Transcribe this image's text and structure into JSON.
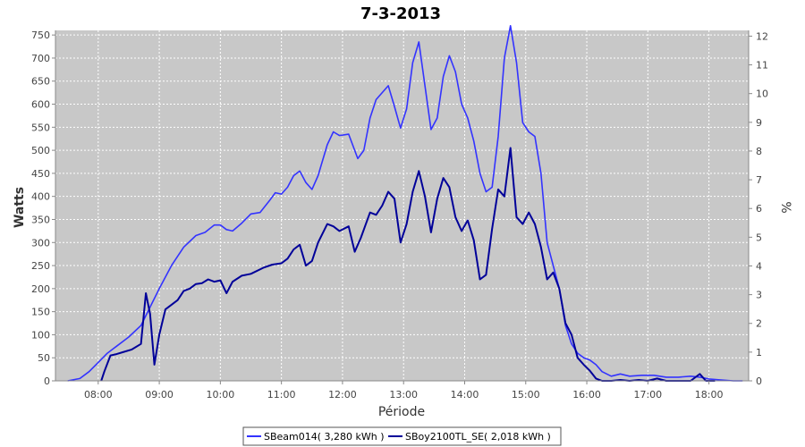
{
  "chart_data": {
    "type": "line",
    "title": "7-3-2013",
    "xlabel": "Période",
    "ylabel": "Watts",
    "y2label": "%",
    "x_tick_labels": [
      "08:00",
      "09:00",
      "10:00",
      "11:00",
      "12:00",
      "13:00",
      "14:00",
      "15:00",
      "16:00",
      "17:00",
      "18:00"
    ],
    "ylim": [
      0,
      760
    ],
    "y_ticks": [
      0,
      50,
      100,
      150,
      200,
      250,
      300,
      350,
      400,
      450,
      500,
      550,
      600,
      650,
      700,
      750
    ],
    "y2lim": [
      0,
      12.2
    ],
    "y2_ticks": [
      0,
      1,
      2,
      3,
      4,
      5,
      6,
      7,
      8,
      9,
      10,
      11,
      12
    ],
    "xlim_hours": [
      7.3,
      18.65
    ],
    "grid": true,
    "legend_position": "bottom",
    "series": [
      {
        "name": "SBeam014( 3,280 kWh )",
        "color": "#3333ff",
        "points": [
          [
            7.5,
            0
          ],
          [
            7.7,
            5
          ],
          [
            7.85,
            20
          ],
          [
            8.0,
            40
          ],
          [
            8.15,
            60
          ],
          [
            8.3,
            75
          ],
          [
            8.5,
            95
          ],
          [
            8.7,
            120
          ],
          [
            8.85,
            160
          ],
          [
            9.0,
            200
          ],
          [
            9.2,
            250
          ],
          [
            9.4,
            290
          ],
          [
            9.6,
            315
          ],
          [
            9.75,
            322
          ],
          [
            9.9,
            338
          ],
          [
            10.0,
            338
          ],
          [
            10.1,
            328
          ],
          [
            10.2,
            325
          ],
          [
            10.35,
            342
          ],
          [
            10.5,
            362
          ],
          [
            10.65,
            365
          ],
          [
            10.8,
            390
          ],
          [
            10.9,
            408
          ],
          [
            11.0,
            405
          ],
          [
            11.1,
            420
          ],
          [
            11.2,
            445
          ],
          [
            11.3,
            455
          ],
          [
            11.4,
            430
          ],
          [
            11.5,
            415
          ],
          [
            11.6,
            445
          ],
          [
            11.75,
            512
          ],
          [
            11.85,
            540
          ],
          [
            11.95,
            532
          ],
          [
            12.1,
            535
          ],
          [
            12.25,
            482
          ],
          [
            12.35,
            500
          ],
          [
            12.45,
            570
          ],
          [
            12.55,
            610
          ],
          [
            12.65,
            625
          ],
          [
            12.75,
            640
          ],
          [
            12.85,
            595
          ],
          [
            12.95,
            548
          ],
          [
            13.05,
            590
          ],
          [
            13.15,
            690
          ],
          [
            13.25,
            735
          ],
          [
            13.35,
            640
          ],
          [
            13.45,
            545
          ],
          [
            13.55,
            570
          ],
          [
            13.65,
            660
          ],
          [
            13.75,
            705
          ],
          [
            13.85,
            670
          ],
          [
            13.95,
            600
          ],
          [
            14.05,
            570
          ],
          [
            14.15,
            520
          ],
          [
            14.25,
            450
          ],
          [
            14.35,
            410
          ],
          [
            14.45,
            420
          ],
          [
            14.55,
            530
          ],
          [
            14.65,
            700
          ],
          [
            14.75,
            770
          ],
          [
            14.85,
            690
          ],
          [
            14.95,
            560
          ],
          [
            15.05,
            540
          ],
          [
            15.15,
            530
          ],
          [
            15.25,
            450
          ],
          [
            15.35,
            300
          ],
          [
            15.45,
            250
          ],
          [
            15.55,
            200
          ],
          [
            15.65,
            120
          ],
          [
            15.75,
            80
          ],
          [
            15.85,
            60
          ],
          [
            15.95,
            50
          ],
          [
            16.05,
            45
          ],
          [
            16.15,
            35
          ],
          [
            16.25,
            20
          ],
          [
            16.4,
            10
          ],
          [
            16.55,
            15
          ],
          [
            16.7,
            10
          ],
          [
            16.9,
            12
          ],
          [
            17.1,
            12
          ],
          [
            17.3,
            8
          ],
          [
            17.5,
            8
          ],
          [
            17.7,
            10
          ],
          [
            17.85,
            8
          ],
          [
            18.0,
            4
          ],
          [
            18.2,
            2
          ],
          [
            18.4,
            0
          ],
          [
            18.55,
            0
          ]
        ]
      },
      {
        "name": "SBoy2100TL_SE( 2,018 kWh )",
        "color": "#000099",
        "points": [
          [
            8.05,
            0
          ],
          [
            8.1,
            20
          ],
          [
            8.2,
            55
          ],
          [
            8.3,
            58
          ],
          [
            8.4,
            62
          ],
          [
            8.55,
            68
          ],
          [
            8.7,
            80
          ],
          [
            8.78,
            190
          ],
          [
            8.85,
            145
          ],
          [
            8.92,
            35
          ],
          [
            9.0,
            100
          ],
          [
            9.1,
            155
          ],
          [
            9.2,
            165
          ],
          [
            9.3,
            175
          ],
          [
            9.4,
            195
          ],
          [
            9.5,
            200
          ],
          [
            9.6,
            210
          ],
          [
            9.7,
            212
          ],
          [
            9.8,
            220
          ],
          [
            9.9,
            215
          ],
          [
            10.0,
            218
          ],
          [
            10.1,
            190
          ],
          [
            10.2,
            215
          ],
          [
            10.35,
            228
          ],
          [
            10.5,
            232
          ],
          [
            10.7,
            245
          ],
          [
            10.85,
            252
          ],
          [
            11.0,
            255
          ],
          [
            11.1,
            265
          ],
          [
            11.2,
            285
          ],
          [
            11.3,
            295
          ],
          [
            11.4,
            250
          ],
          [
            11.5,
            260
          ],
          [
            11.6,
            300
          ],
          [
            11.75,
            340
          ],
          [
            11.85,
            335
          ],
          [
            11.95,
            325
          ],
          [
            12.1,
            335
          ],
          [
            12.2,
            280
          ],
          [
            12.3,
            310
          ],
          [
            12.45,
            365
          ],
          [
            12.55,
            360
          ],
          [
            12.65,
            380
          ],
          [
            12.75,
            410
          ],
          [
            12.85,
            395
          ],
          [
            12.95,
            300
          ],
          [
            13.05,
            340
          ],
          [
            13.15,
            410
          ],
          [
            13.25,
            455
          ],
          [
            13.35,
            400
          ],
          [
            13.45,
            322
          ],
          [
            13.55,
            395
          ],
          [
            13.65,
            440
          ],
          [
            13.75,
            420
          ],
          [
            13.85,
            355
          ],
          [
            13.95,
            325
          ],
          [
            14.05,
            348
          ],
          [
            14.15,
            305
          ],
          [
            14.25,
            220
          ],
          [
            14.35,
            230
          ],
          [
            14.45,
            330
          ],
          [
            14.55,
            415
          ],
          [
            14.65,
            400
          ],
          [
            14.75,
            505
          ],
          [
            14.85,
            355
          ],
          [
            14.95,
            340
          ],
          [
            15.05,
            365
          ],
          [
            15.15,
            340
          ],
          [
            15.25,
            290
          ],
          [
            15.35,
            220
          ],
          [
            15.45,
            235
          ],
          [
            15.55,
            200
          ],
          [
            15.65,
            125
          ],
          [
            15.75,
            100
          ],
          [
            15.85,
            50
          ],
          [
            15.95,
            35
          ],
          [
            16.05,
            22
          ],
          [
            16.15,
            5
          ],
          [
            16.25,
            0
          ],
          [
            16.4,
            0
          ],
          [
            16.55,
            2
          ],
          [
            16.7,
            0
          ],
          [
            16.85,
            2
          ],
          [
            17.0,
            0
          ],
          [
            17.15,
            5
          ],
          [
            17.3,
            0
          ],
          [
            17.5,
            0
          ],
          [
            17.7,
            0
          ],
          [
            17.85,
            15
          ],
          [
            17.95,
            0
          ],
          [
            18.1,
            0
          ]
        ]
      }
    ]
  }
}
